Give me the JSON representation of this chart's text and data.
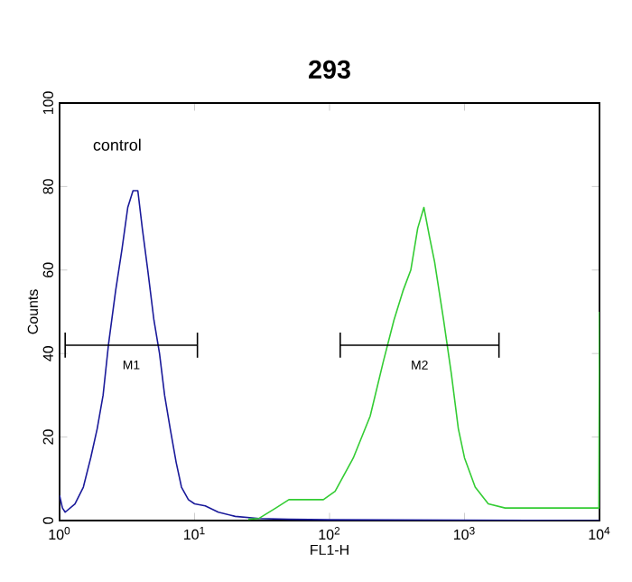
{
  "chart_data": {
    "type": "line",
    "title": "293",
    "xlabel": "FL1-H",
    "ylabel": "Counts",
    "log": "x",
    "xlim": [
      1,
      10000
    ],
    "ylim": [
      0,
      100
    ],
    "xticks": [
      {
        "value": 1,
        "label": "10$^{0}$"
      },
      {
        "value": 10,
        "label": "10$^{1}$"
      },
      {
        "value": 100,
        "label": "10$^{2}$"
      },
      {
        "value": 1000,
        "label": "10$^{3}$"
      },
      {
        "value": 10000,
        "label": "10$^{4}$"
      }
    ],
    "yticks": [
      0,
      20,
      40,
      60,
      80,
      100
    ],
    "grid": false,
    "annotations": [
      "control",
      "M1",
      "M2"
    ],
    "series": [
      {
        "color": "#1a1a9a",
        "x": [
          1,
          1.05,
          1.1,
          1.3,
          1.5,
          1.7,
          1.9,
          2.1,
          2.3,
          2.6,
          2.9,
          3.2,
          3.5,
          3.8,
          4.1,
          4.5,
          5.0,
          5.5,
          6.0,
          6.6,
          7.3,
          8.0,
          9,
          10,
          12,
          15,
          20,
          30,
          50,
          100,
          1000,
          10000
        ],
        "values": [
          6,
          3,
          2,
          4,
          8,
          15,
          22,
          30,
          42,
          55,
          65,
          75,
          79,
          79,
          70,
          60,
          48,
          40,
          30,
          22,
          14,
          8,
          5,
          4,
          3.5,
          2,
          1,
          0.5,
          0.3,
          0.2,
          0.1,
          0
        ]
      },
      {
        "color": "#33cc33",
        "x": [
          25,
          30,
          40,
          50,
          70,
          90,
          110,
          150,
          200,
          250,
          300,
          350,
          400,
          450,
          500,
          550,
          600,
          700,
          800,
          900,
          1000,
          1200,
          1500,
          2000,
          3000,
          5000,
          9900,
          10000
        ],
        "values": [
          0.3,
          0.5,
          3,
          5,
          5,
          5,
          7,
          15,
          25,
          38,
          48,
          55,
          60,
          70,
          75,
          68,
          62,
          48,
          35,
          22,
          15,
          8,
          4,
          3,
          3,
          3,
          3,
          50
        ]
      },
      {
        "color": "#000000",
        "x": [
          1.1,
          10.5
        ],
        "values": [
          42,
          42
        ],
        "errors": [
          3,
          3
        ]
      },
      {
        "color": "#000000",
        "x": [
          120,
          1800
        ],
        "values": [
          42,
          42
        ],
        "errors": [
          3,
          3
        ]
      }
    ]
  }
}
